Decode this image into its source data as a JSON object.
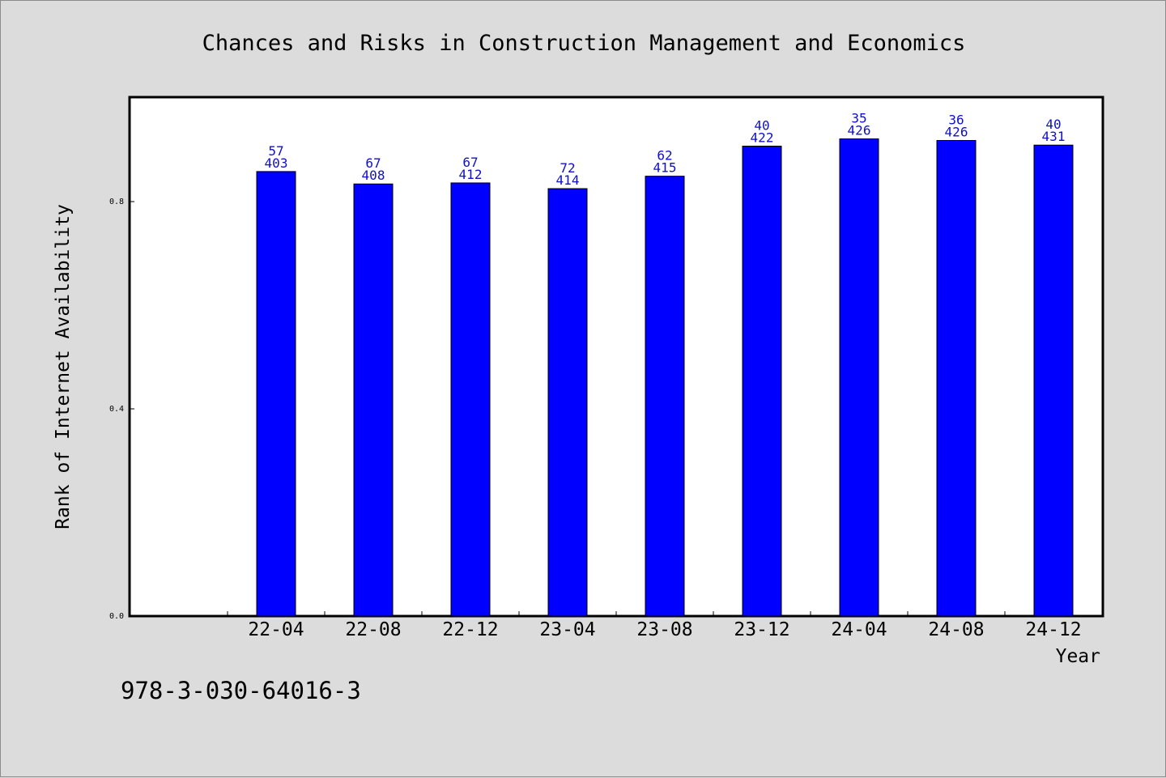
{
  "chart_data": {
    "type": "bar",
    "title": "Chances and Risks in Construction Management and Economics",
    "xlabel": "Year",
    "ylabel": "Rank of Internet Availability",
    "categories": [
      "22-04",
      "22-08",
      "22-12",
      "23-04",
      "23-08",
      "23-12",
      "24-04",
      "24-08",
      "24-12"
    ],
    "values": [
      0.858,
      0.834,
      0.836,
      0.825,
      0.849,
      0.907,
      0.921,
      0.918,
      0.909
    ],
    "bar_labels_top": [
      "57",
      "67",
      "67",
      "72",
      "62",
      "40",
      "35",
      "36",
      "40"
    ],
    "bar_labels_bottom": [
      "403",
      "408",
      "412",
      "414",
      "415",
      "422",
      "426",
      "426",
      "431"
    ],
    "yticks": [
      0.0,
      0.4,
      0.8
    ],
    "ytick_labels": [
      "0.0",
      "0.4",
      "0.8"
    ],
    "ylim": [
      0,
      1.0
    ],
    "grid": false,
    "legend": "none",
    "colors": {
      "bar": "#0000ff",
      "bar_label": "#1010c8",
      "background": "#dcdcdc",
      "plot_bg": "#ffffff"
    }
  },
  "footer_text": "978-3-030-64016-3"
}
